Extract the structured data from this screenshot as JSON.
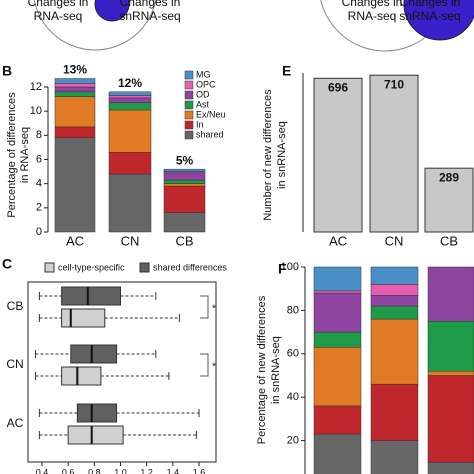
{
  "chart_data": [
    {
      "type": "venn",
      "labels": [
        [
          "Changes in",
          "RNA-seq"
        ],
        [
          "Changes in",
          "snRNA-seq"
        ]
      ]
    },
    {
      "type": "venn",
      "labels": [
        [
          "Changes in",
          "RNA-seq"
        ],
        [
          "Changes in",
          "snRNA-seq"
        ]
      ]
    },
    {
      "type": "stacked",
      "panel": "B",
      "ylabel": [
        "Percentage of differences",
        "in RNA-seq"
      ],
      "categories": [
        "AC",
        "CN",
        "CB"
      ],
      "series": [
        {
          "name": "shared",
          "color": "#666666",
          "values": [
            7.8,
            4.8,
            1.6
          ]
        },
        {
          "name": "In",
          "color": "#c0272d",
          "values": [
            0.9,
            1.8,
            2.2
          ]
        },
        {
          "name": "Ex/Neu",
          "color": "#e07a25",
          "values": [
            2.5,
            3.5,
            0.2
          ]
        },
        {
          "name": "Ast",
          "color": "#1e9a48",
          "values": [
            0.4,
            0.6,
            0.3
          ]
        },
        {
          "name": "OD",
          "color": "#8e44a0",
          "values": [
            0.4,
            0.4,
            0.6
          ]
        },
        {
          "name": "OPC",
          "color": "#e85fb0",
          "values": [
            0.3,
            0.2,
            0.1
          ]
        },
        {
          "name": "MG",
          "color": "#4a8ec8",
          "values": [
            0.4,
            0.3,
            0.2
          ]
        }
      ],
      "annotations": [
        "13%",
        "12%",
        "5%"
      ],
      "ylim": [
        0,
        12
      ],
      "yticks": [
        0,
        2,
        4,
        6,
        8,
        10,
        12
      ],
      "legend": "top-right"
    },
    {
      "type": "bar",
      "panel": "E",
      "ylabel": [
        "Number of new differences",
        "in snRNA-seq"
      ],
      "categories": [
        "AC",
        "CN",
        "CB"
      ],
      "values": [
        696,
        710,
        289
      ],
      "color": "#c8c8c8",
      "ylim": [
        0,
        720
      ]
    },
    {
      "type": "box",
      "panel": "C",
      "categories": [
        "CB",
        "CN",
        "AC"
      ],
      "series": [
        {
          "name": "cell-type-specific",
          "color": "#d0d0d0",
          "boxes": [
            {
              "min": 0.38,
              "q1": 0.55,
              "median": 0.62,
              "q3": 0.88,
              "max": 1.45
            },
            {
              "min": 0.35,
              "q1": 0.55,
              "median": 0.67,
              "q3": 0.85,
              "max": 1.37
            },
            {
              "min": 0.38,
              "q1": 0.6,
              "median": 0.78,
              "q3": 1.02,
              "max": 1.58
            }
          ]
        },
        {
          "name": "shared differences",
          "color": "#606060",
          "boxes": [
            {
              "min": 0.38,
              "q1": 0.55,
              "median": 0.75,
              "q3": 1.0,
              "max": 1.27
            },
            {
              "min": 0.35,
              "q1": 0.62,
              "median": 0.78,
              "q3": 0.97,
              "max": 1.27
            },
            {
              "min": 0.38,
              "q1": 0.67,
              "median": 0.78,
              "q3": 0.97,
              "max": 1.6
            }
          ]
        }
      ],
      "annotations": [
        "*",
        "*"
      ],
      "xlim": [
        0.3,
        1.75
      ],
      "xticks": [
        0.4,
        0.6,
        0.8,
        {
          "value": 1,
          "label": "1.0"
        },
        1.2,
        1.4,
        1.6
      ]
    },
    {
      "type": "stacked",
      "panel": "F",
      "ylabel": [
        "Percentage of new differences",
        "in snRNA-seq"
      ],
      "series": [
        {
          "name": "shared",
          "color": "#666666",
          "values": [
            23,
            20,
            10
          ]
        },
        {
          "name": "In",
          "color": "#c0272d",
          "values": [
            13,
            26,
            40
          ]
        },
        {
          "name": "Ex/Neu",
          "color": "#e07a25",
          "values": [
            27,
            30,
            2
          ]
        },
        {
          "name": "Ast",
          "color": "#1e9a48",
          "values": [
            7,
            6,
            23
          ]
        },
        {
          "name": "OD",
          "color": "#8e44a0",
          "values": [
            18,
            5,
            25
          ]
        },
        {
          "name": "OPC",
          "color": "#e85fb0",
          "values": [
            1,
            5,
            0
          ]
        },
        {
          "name": "MG",
          "color": "#4a8ec8",
          "values": [
            11,
            8,
            0
          ]
        }
      ],
      "ylim": [
        0,
        100
      ],
      "yticks": [
        20,
        40,
        60,
        80,
        100
      ]
    }
  ]
}
